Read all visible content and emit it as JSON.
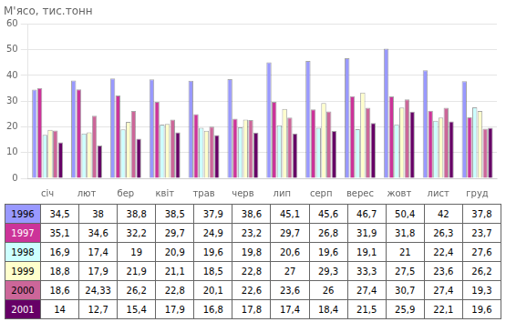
{
  "chart_data": {
    "type": "bar",
    "title": "М'ясо, тис.тонн",
    "categories": [
      "січ",
      "лют",
      "бер",
      "квіт",
      "трав",
      "черв",
      "лип",
      "серп",
      "верес",
      "жовт",
      "лист",
      "груд"
    ],
    "series": [
      {
        "name": "1996",
        "color": "#9999FF",
        "values": [
          34.5,
          38,
          38.8,
          38.5,
          37.9,
          38.6,
          45.1,
          45.6,
          46.7,
          50.4,
          42,
          37.8
        ],
        "value_labels": [
          "34,5",
          "38",
          "38,8",
          "38,5",
          "37,9",
          "38,6",
          "45,1",
          "45,6",
          "46,7",
          "50,4",
          "42",
          "37,8"
        ]
      },
      {
        "name": "1997",
        "color": "#CC3399",
        "values": [
          35.1,
          34.6,
          32.2,
          29.7,
          24.9,
          23.2,
          29.7,
          26.8,
          31.9,
          31.8,
          26.3,
          23.7
        ],
        "value_labels": [
          "35,1",
          "34,6",
          "32,2",
          "29,7",
          "24,9",
          "23,2",
          "29,7",
          "26,8",
          "31,9",
          "31,8",
          "26,3",
          "23,7"
        ]
      },
      {
        "name": "1998",
        "color": "#CCFFFF",
        "values": [
          16.9,
          17.4,
          19,
          20.9,
          19.6,
          19.8,
          20.6,
          19.6,
          19.1,
          21,
          22.4,
          27.6
        ],
        "value_labels": [
          "16,9",
          "17,4",
          "19",
          "20,9",
          "19,6",
          "19,8",
          "20,6",
          "19,6",
          "19,1",
          "21",
          "22,4",
          "27,6"
        ]
      },
      {
        "name": "1999",
        "color": "#FFFFCC",
        "values": [
          18.8,
          17.9,
          21.9,
          21.1,
          18.5,
          22.8,
          27,
          29.3,
          33.3,
          27.5,
          23.6,
          26.2
        ],
        "value_labels": [
          "18,8",
          "17,9",
          "21,9",
          "21,1",
          "18,5",
          "22,8",
          "27",
          "29,3",
          "33,3",
          "27,5",
          "23,6",
          "26,2"
        ]
      },
      {
        "name": "2000",
        "color": "#CC6699",
        "values": [
          18.6,
          24.33,
          26.2,
          22.8,
          20.1,
          22.6,
          23.6,
          26,
          27.4,
          30.7,
          27.4,
          19.3
        ],
        "value_labels": [
          "18,6",
          "24,33",
          "26,2",
          "22,8",
          "20,1",
          "22,6",
          "23,6",
          "26",
          "27,4",
          "30,7",
          "27,4",
          "19,3"
        ]
      },
      {
        "name": "2001",
        "color": "#660066",
        "values": [
          14,
          12.7,
          15.4,
          17.9,
          16.8,
          17.8,
          17.4,
          18.4,
          21.5,
          25.9,
          22.1,
          19.6
        ],
        "value_labels": [
          "14",
          "12,7",
          "15,4",
          "17,9",
          "16,8",
          "17,8",
          "17,4",
          "18,4",
          "21,5",
          "25,9",
          "22,1",
          "19,6"
        ]
      }
    ],
    "ylim": [
      0,
      60
    ],
    "yticks": [
      0,
      10,
      20,
      30,
      40,
      50,
      60
    ],
    "grid": true
  }
}
